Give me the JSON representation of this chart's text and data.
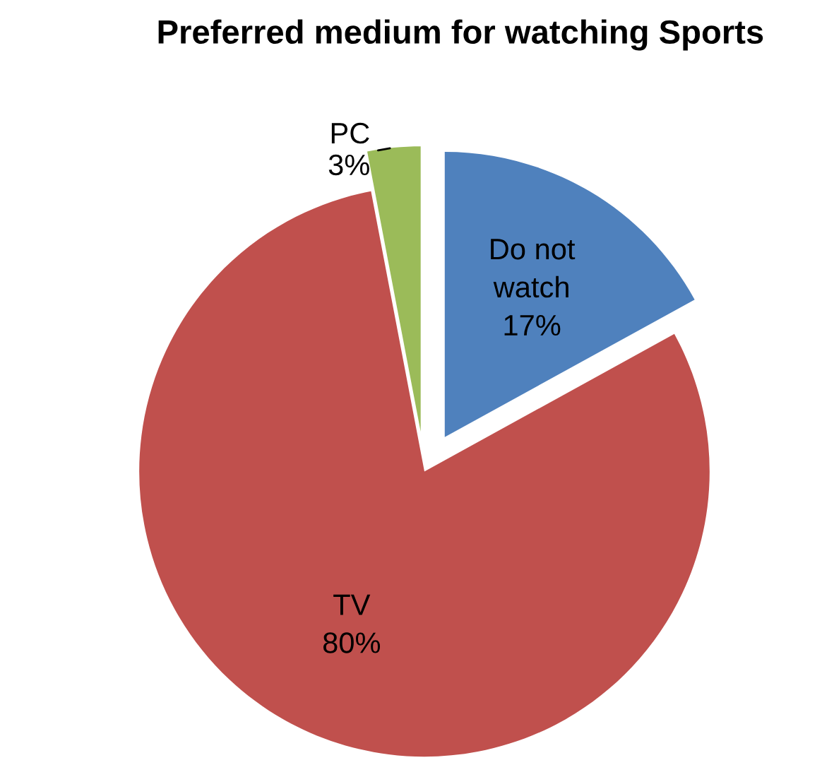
{
  "chart_data": {
    "type": "pie",
    "title": "Preferred medium for watching Sports",
    "categories": [
      "Do not watch",
      "TV",
      "PC"
    ],
    "values": [
      17,
      80,
      3
    ],
    "value_labels": [
      "17%",
      "80%",
      "3%"
    ],
    "colors": [
      "#4f81bd",
      "#c0504d",
      "#9bbb59"
    ],
    "legend": false
  }
}
